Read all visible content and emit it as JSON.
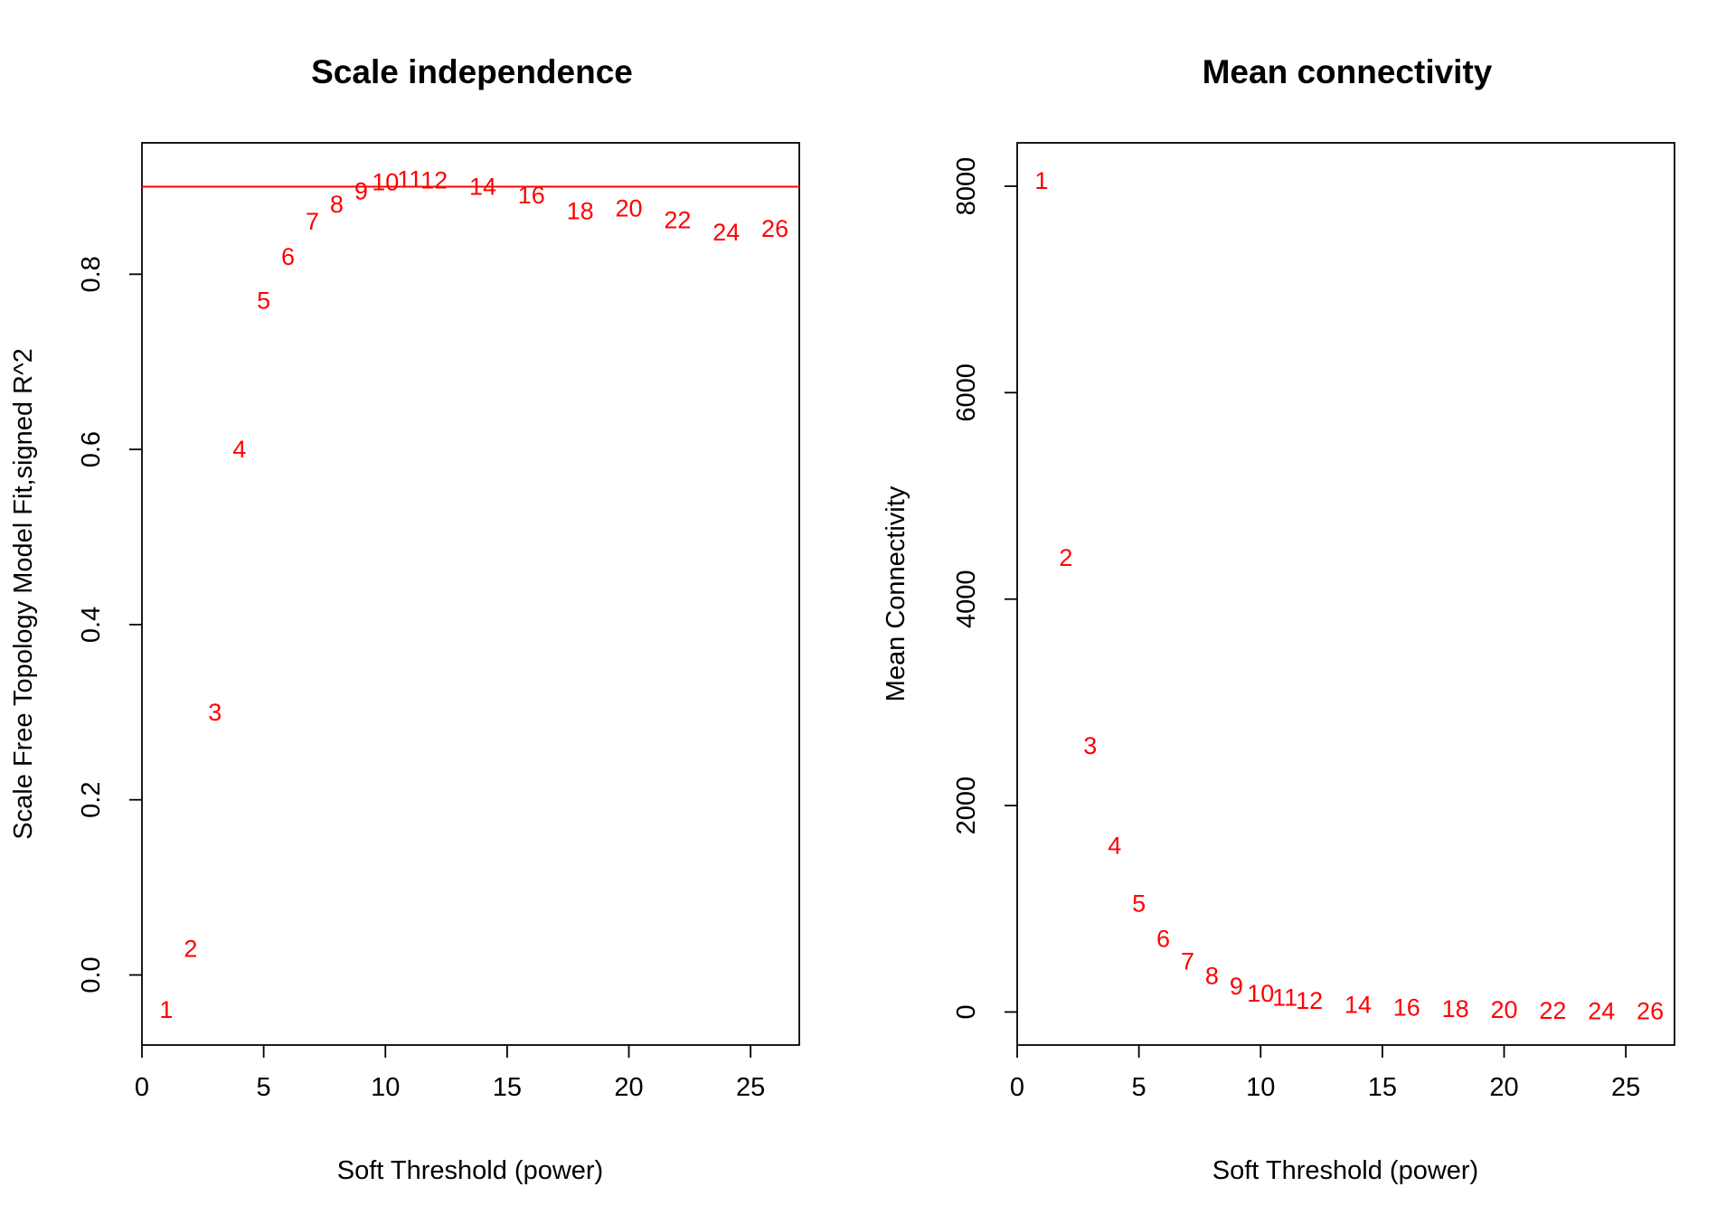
{
  "chart_data": [
    {
      "type": "scatter",
      "title": "Scale independence",
      "xlabel": "Soft Threshold (power)",
      "ylabel": "Scale Free Topology Model Fit,signed R^2",
      "xlim": [
        0,
        27
      ],
      "ylim": [
        -0.08,
        0.95
      ],
      "xticks": [
        0,
        5,
        10,
        15,
        20,
        25
      ],
      "yticks": [
        0.0,
        0.2,
        0.4,
        0.6,
        0.8
      ],
      "ytick_labels": [
        "0.0",
        "0.2",
        "0.4",
        "0.6",
        "0.8"
      ],
      "marker": "text-label",
      "point_color": "#ff0000",
      "hline": {
        "y": 0.9,
        "color": "#ff0000"
      },
      "points": [
        {
          "x": 1,
          "y": -0.04,
          "label": "1"
        },
        {
          "x": 2,
          "y": 0.03,
          "label": "2"
        },
        {
          "x": 3,
          "y": 0.3,
          "label": "3"
        },
        {
          "x": 4,
          "y": 0.6,
          "label": "4"
        },
        {
          "x": 5,
          "y": 0.77,
          "label": "5"
        },
        {
          "x": 6,
          "y": 0.82,
          "label": "6"
        },
        {
          "x": 7,
          "y": 0.86,
          "label": "7"
        },
        {
          "x": 8,
          "y": 0.88,
          "label": "8"
        },
        {
          "x": 9,
          "y": 0.895,
          "label": "9"
        },
        {
          "x": 10,
          "y": 0.905,
          "label": "10"
        },
        {
          "x": 11,
          "y": 0.908,
          "label": "11"
        },
        {
          "x": 12,
          "y": 0.907,
          "label": "12"
        },
        {
          "x": 14,
          "y": 0.9,
          "label": "14"
        },
        {
          "x": 16,
          "y": 0.89,
          "label": "16"
        },
        {
          "x": 18,
          "y": 0.872,
          "label": "18"
        },
        {
          "x": 20,
          "y": 0.875,
          "label": "20"
        },
        {
          "x": 22,
          "y": 0.862,
          "label": "22"
        },
        {
          "x": 24,
          "y": 0.848,
          "label": "24"
        },
        {
          "x": 26,
          "y": 0.852,
          "label": "26"
        }
      ]
    },
    {
      "type": "scatter",
      "title": "Mean connectivity",
      "xlabel": "Soft Threshold (power)",
      "ylabel": "Mean Connectivity",
      "xlim": [
        0,
        27
      ],
      "ylim": [
        -320,
        8420
      ],
      "xticks": [
        0,
        5,
        10,
        15,
        20,
        25
      ],
      "yticks": [
        0,
        2000,
        4000,
        6000,
        8000
      ],
      "ytick_labels": [
        "0",
        "2000",
        "4000",
        "6000",
        "8000"
      ],
      "marker": "text-label",
      "point_color": "#ff0000",
      "points": [
        {
          "x": 1,
          "y": 8050,
          "label": "1"
        },
        {
          "x": 2,
          "y": 4400,
          "label": "2"
        },
        {
          "x": 3,
          "y": 2580,
          "label": "3"
        },
        {
          "x": 4,
          "y": 1610,
          "label": "4"
        },
        {
          "x": 5,
          "y": 1050,
          "label": "5"
        },
        {
          "x": 6,
          "y": 710,
          "label": "6"
        },
        {
          "x": 7,
          "y": 490,
          "label": "7"
        },
        {
          "x": 8,
          "y": 350,
          "label": "8"
        },
        {
          "x": 9,
          "y": 250,
          "label": "9"
        },
        {
          "x": 10,
          "y": 180,
          "label": "10"
        },
        {
          "x": 11,
          "y": 140,
          "label": "11"
        },
        {
          "x": 12,
          "y": 110,
          "label": "12"
        },
        {
          "x": 14,
          "y": 70,
          "label": "14"
        },
        {
          "x": 16,
          "y": 45,
          "label": "16"
        },
        {
          "x": 18,
          "y": 30,
          "label": "18"
        },
        {
          "x": 20,
          "y": 20,
          "label": "20"
        },
        {
          "x": 22,
          "y": 14,
          "label": "22"
        },
        {
          "x": 24,
          "y": 10,
          "label": "24"
        },
        {
          "x": 26,
          "y": 7,
          "label": "26"
        }
      ]
    }
  ]
}
